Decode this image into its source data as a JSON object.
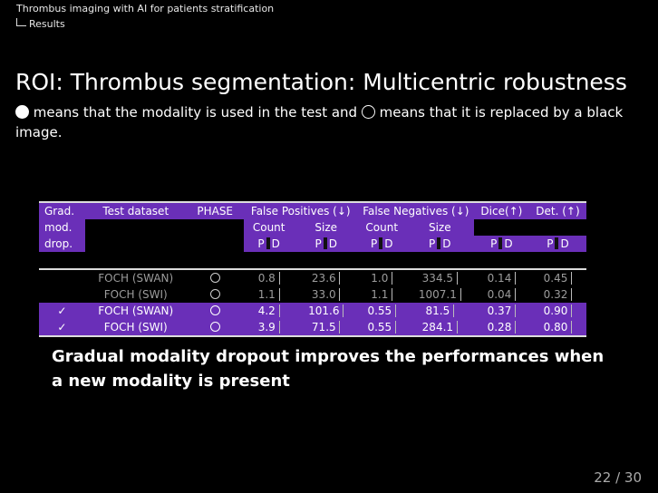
{
  "header": {
    "section": "Thrombus imaging with AI for patients stratification",
    "subsection": "Results"
  },
  "slide": {
    "title": "ROI: Thrombus segmentation: Multicentric robustness",
    "desc_a": " means that the modality is used in the test and ",
    "desc_b": " means that it is replaced by a black image.",
    "conclusion": "Gradual modality dropout improves the performances when a new modality is present",
    "page": "22 / 30"
  },
  "table": {
    "h1": [
      "Grad.",
      "Test dataset",
      "PHASE",
      "False Positives (↓)",
      "False Negatives (↓)",
      "Dice(↑)",
      "Det. (↑)"
    ],
    "h2": [
      "mod.",
      "Count",
      "Size",
      "Count",
      "Size"
    ],
    "h3": [
      "drop.",
      "P",
      "D",
      "P",
      "D",
      "P",
      "D",
      "P",
      "D",
      "P",
      "D",
      "P",
      "D"
    ],
    "rows": [
      {
        "grad": "",
        "dataset": "FOCH (SWAN)",
        "fp_count": "0.8",
        "fp_size": "23.6",
        "fn_count": "1.0",
        "fn_size": "334.5",
        "dice": "0.14",
        "det": "0.45"
      },
      {
        "grad": "",
        "dataset": "FOCH (SWI)",
        "fp_count": "1.1",
        "fp_size": "33.0",
        "fn_count": "1.1",
        "fn_size": "1007.1",
        "dice": "0.04",
        "det": "0.32"
      },
      {
        "grad": "✓",
        "dataset": "FOCH (SWAN)",
        "fp_count": "4.2",
        "fp_size": "101.6",
        "fn_count": "0.55",
        "fn_size": "81.5",
        "dice": "0.37",
        "det": "0.90"
      },
      {
        "grad": "✓",
        "dataset": "FOCH (SWI)",
        "fp_count": "3.9",
        "fp_size": "71.5",
        "fn_count": "0.55",
        "fn_size": "284.1",
        "dice": "0.28",
        "det": "0.80"
      }
    ]
  }
}
